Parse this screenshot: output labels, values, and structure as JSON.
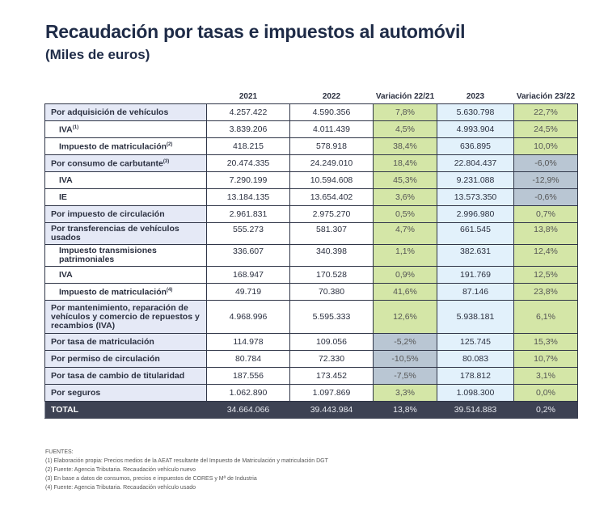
{
  "title": "Recaudación por tasas e impuestos al automóvil",
  "subtitle": "(Miles de euros)",
  "headers": [
    "2021",
    "2022",
    "Variación 22/21",
    "2023",
    "Variación 23/22"
  ],
  "rows": [
    {
      "label": "Por adquisición de vehículos",
      "sup": "",
      "level": "top",
      "v": [
        "4.257.422",
        "4.590.356",
        "7,8%",
        "5.630.798",
        "22,7%"
      ]
    },
    {
      "label": "IVA",
      "sup": "(1)",
      "level": "sub",
      "v": [
        "3.839.206",
        "4.011.439",
        "4,5%",
        "4.993.904",
        "24,5%"
      ]
    },
    {
      "label": "Impuesto de matriculación",
      "sup": "(2)",
      "level": "sub",
      "v": [
        "418.215",
        "578.918",
        "38,4%",
        "636.895",
        "10,0%"
      ]
    },
    {
      "label": "Por consumo de carbutante",
      "sup": "(3)",
      "level": "top",
      "v": [
        "20.474.335",
        "24.249.010",
        "18,4%",
        "22.804.437",
        "-6,0%"
      ]
    },
    {
      "label": "IVA",
      "sup": "",
      "level": "sub",
      "v": [
        "7.290.199",
        "10.594.608",
        "45,3%",
        "9.231.088",
        "-12,9%"
      ]
    },
    {
      "label": "IE",
      "sup": "",
      "level": "sub",
      "v": [
        "13.184.135",
        "13.654.402",
        "3,6%",
        "13.573.350",
        "-0,6%"
      ]
    },
    {
      "label": "Por impuesto de circulación",
      "sup": "",
      "level": "top",
      "v": [
        "2.961.831",
        "2.975.270",
        "0,5%",
        "2.996.980",
        "0,7%"
      ]
    },
    {
      "label": "Por transferencias de vehículos usados",
      "sup": "",
      "level": "top",
      "lines": 2,
      "v": [
        "555.273",
        "581.307",
        "4,7%",
        "661.545",
        "13,8%"
      ]
    },
    {
      "label": "Impuesto transmisiones patrimoniales",
      "sup": "",
      "level": "sub",
      "lines": 2,
      "v": [
        "336.607",
        "340.398",
        "1,1%",
        "382.631",
        "12,4%"
      ]
    },
    {
      "label": "IVA",
      "sup": "",
      "level": "sub",
      "v": [
        "168.947",
        "170.528",
        "0,9%",
        "191.769",
        "12,5%"
      ]
    },
    {
      "label": "Impuesto de matriculación",
      "sup": "(4)",
      "level": "sub",
      "v": [
        "49.719",
        "70.380",
        "41,6%",
        "87.146",
        "23,8%"
      ]
    },
    {
      "label": "Por mantenimiento, reparación de vehículos y comercio de repuestos y recambios (IVA)",
      "sup": "",
      "level": "top",
      "lines": 3,
      "v": [
        "4.968.996",
        "5.595.333",
        "12,6%",
        "5.938.181",
        "6,1%"
      ]
    },
    {
      "label": "Por tasa de matriculación",
      "sup": "",
      "level": "top",
      "v": [
        "114.978",
        "109.056",
        "-5,2%",
        "125.745",
        "15,3%"
      ]
    },
    {
      "label": "Por permiso de circulación",
      "sup": "",
      "level": "top",
      "v": [
        "80.784",
        "72.330",
        "-10,5%",
        "80.083",
        "10,7%"
      ]
    },
    {
      "label": "Por tasa de cambio de titularidad",
      "sup": "",
      "level": "top",
      "v": [
        "187.556",
        "173.452",
        "-7,5%",
        "178.812",
        "3,1%"
      ]
    },
    {
      "label": "Por seguros",
      "sup": "",
      "level": "top",
      "v": [
        "1.062.890",
        "1.097.869",
        "3,3%",
        "1.098.300",
        "0,0%"
      ]
    }
  ],
  "total": {
    "label": "TOTAL",
    "v": [
      "34.664.066",
      "39.443.984",
      "13,8%",
      "39.514.883",
      "0,2%"
    ]
  },
  "notes": [
    "FUENTES:",
    "(1) Elaboración propia: Precios medios de la AEAT resultante del Impuesto de Matriculación y matriculación DGT",
    "(2) Fuente: Agencia Tributaria. Recaudación vehículo nuevo",
    "(3) En base a datos de consumos, precios e impuestos de CORES y Mª de Industria",
    "(4) Fuente: Agencia Tributaria. Recaudación vehículo usado"
  ],
  "colors": {
    "title": "#1e2b47",
    "positive_variation": "#d4e6a7",
    "negative_variation": "#b9c6d3",
    "col_2023": "#e2f1fb",
    "total_row": "#3d4253",
    "category_label": "#e5e9f6"
  }
}
